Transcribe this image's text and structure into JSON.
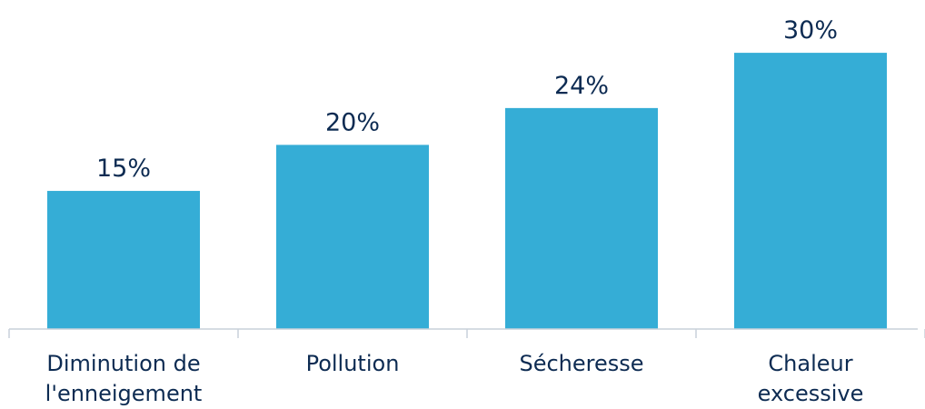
{
  "chart_data": {
    "type": "bar",
    "categories": [
      [
        "Diminution de",
        "l'enneigement"
      ],
      [
        "Pollution"
      ],
      [
        "Sécheresse"
      ],
      [
        "Chaleur",
        "excessive"
      ]
    ],
    "values": [
      15,
      20,
      24,
      30
    ],
    "value_labels": [
      "15%",
      "20%",
      "24%",
      "30%"
    ],
    "unit": "%",
    "title": "",
    "xlabel": "",
    "ylabel": "",
    "ylim": [
      0,
      30
    ],
    "grid": false,
    "legend": "none",
    "colors": {
      "bar": "#35add6",
      "text": "#0d2b52",
      "axis": "#c8d1da"
    }
  }
}
